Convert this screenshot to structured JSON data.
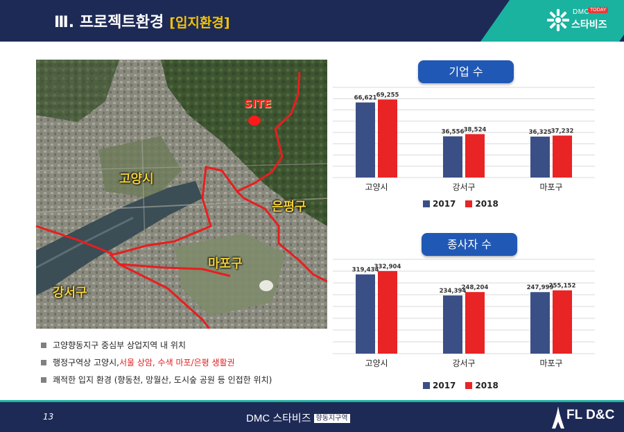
{
  "header": {
    "title": "Ⅲ. 프로젝트환경",
    "subtitle": "[입지환경]"
  },
  "logo": {
    "dmc": "DMC",
    "badge": "TODAY",
    "name": "스타비즈"
  },
  "map": {
    "site_label": "SITE",
    "region_labels": [
      "고양시",
      "은평구",
      "마포구",
      "강서구"
    ]
  },
  "bullets": [
    {
      "text": "고양향동지구 중심부 상업지역 내 위치"
    },
    {
      "pre": "행정구역상 고양시, ",
      "highlight": "서울 상암, 수색 마포/은평 생활권"
    },
    {
      "text": "쾌적한 입지 환경 (향동천, 망월산, 도시숲 공원 등 인접한 위치)"
    }
  ],
  "colors": {
    "navy": "#1e2a56",
    "teal": "#19b3a0",
    "series_2017": "#3a4f86",
    "series_2018": "#e82424",
    "chart_title_bg": "#2058b5"
  },
  "chart_data": [
    {
      "type": "bar",
      "title": "기업 수",
      "categories": [
        "고양시",
        "강서구",
        "마포구"
      ],
      "series": [
        {
          "name": "2017",
          "values": [
            66621,
            36556,
            36325
          ],
          "labels": [
            "66,621",
            "36,556",
            "36,325"
          ]
        },
        {
          "name": "2018",
          "values": [
            69255,
            38524,
            37232
          ],
          "labels": [
            "69,255",
            "38,524",
            "37,232"
          ]
        }
      ],
      "ylim": [
        0,
        80000
      ],
      "grid": true,
      "legend": "bottom"
    },
    {
      "type": "bar",
      "title": "종사자 수",
      "categories": [
        "고양시",
        "강서구",
        "마포구"
      ],
      "series": [
        {
          "name": "2017",
          "values": [
            319434,
            234394,
            247999
          ],
          "labels": [
            "319,434",
            "234,394",
            "247,999"
          ]
        },
        {
          "name": "2018",
          "values": [
            332904,
            248204,
            255152
          ],
          "labels": [
            "332,904",
            "248,204",
            "255,152"
          ]
        }
      ],
      "ylim": [
        0,
        380000
      ],
      "grid": true,
      "legend": "bottom"
    }
  ],
  "footer": {
    "page_number": "13",
    "brand_dmc": "DMC ",
    "brand_name": "스타비즈",
    "brand_tag": "향동지구역",
    "company": "FL D&C"
  }
}
